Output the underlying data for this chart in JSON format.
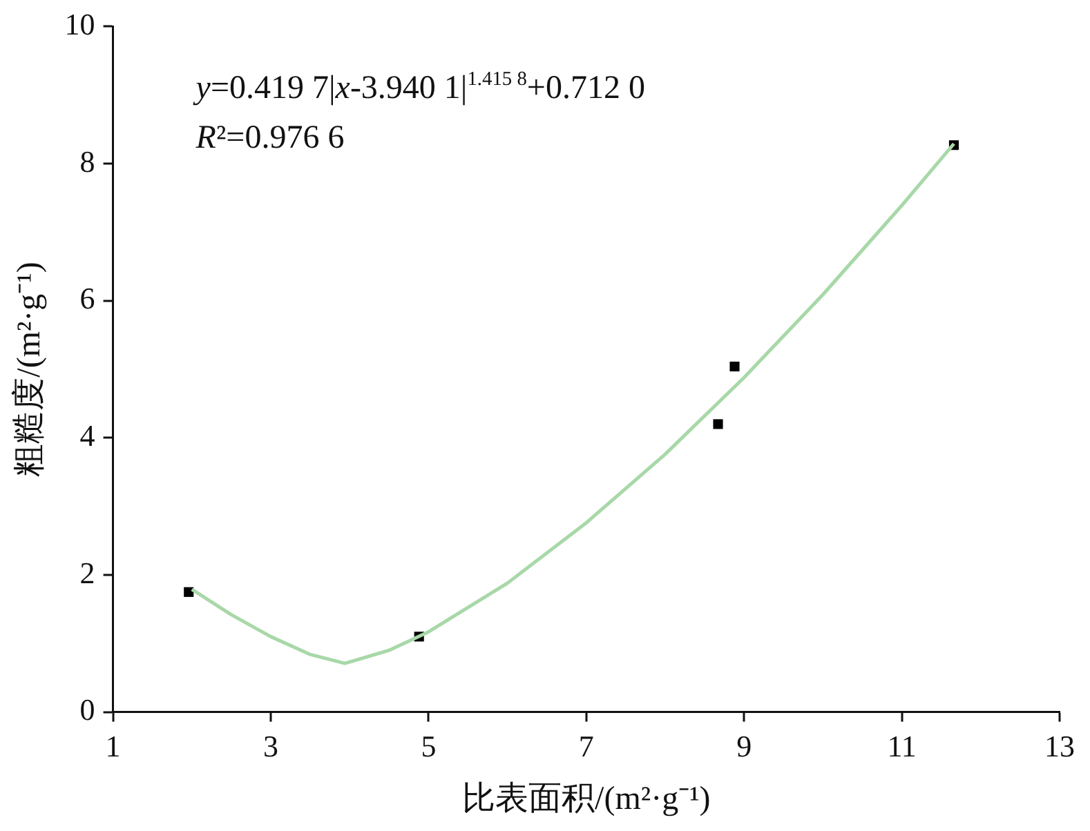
{
  "chart_data": {
    "type": "scatter",
    "xlabel": "比表面积/(m²·g⁻¹)",
    "ylabel": "粗糙度/(m²·g⁻¹)",
    "xlim": [
      1,
      13
    ],
    "xticks": [
      1,
      3,
      5,
      7,
      9,
      11,
      13
    ],
    "ylim": [
      0,
      10
    ],
    "yticks": [
      0,
      2,
      4,
      6,
      8,
      10
    ],
    "grid": false,
    "legend": false,
    "annotations": [
      "y=0.419 7|x-3.940 1|$^{1.415 8}$+0.712 0",
      "R²=0.976 6"
    ],
    "series": [
      {
        "type": "line",
        "color": "#a8d8a8",
        "marker": "none",
        "line_style": "solid",
        "x": [
          2,
          2.5,
          3,
          3.5,
          3.94,
          4.5,
          5,
          6,
          7,
          8,
          9,
          10,
          11,
          11.66
        ],
        "values": [
          1.79,
          1.42,
          1.1,
          0.84,
          0.71,
          0.9,
          1.17,
          1.88,
          2.76,
          3.76,
          4.88,
          6.09,
          7.39,
          8.29
        ]
      },
      {
        "type": "scatter",
        "color": "#000000",
        "marker": "square",
        "x": [
          1.96,
          4.88,
          8.67,
          8.88,
          11.66
        ],
        "values": [
          1.75,
          1.1,
          4.2,
          5.04,
          8.27
        ]
      }
    ]
  }
}
